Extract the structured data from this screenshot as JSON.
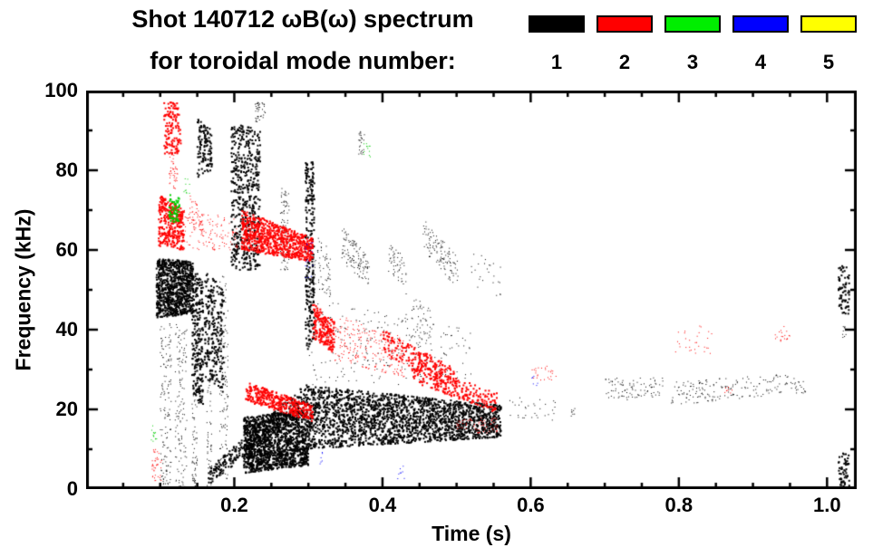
{
  "title": {
    "line1": "Shot 140712 ωB(ω) spectrum",
    "line2": "for toroidal mode number:"
  },
  "legend": {
    "items": [
      {
        "label": "1",
        "color": "#000000"
      },
      {
        "label": "2",
        "color": "#ff0000"
      },
      {
        "label": "3",
        "color": "#00ee00"
      },
      {
        "label": "4",
        "color": "#0000ff"
      },
      {
        "label": "5",
        "color": "#ffff00"
      }
    ]
  },
  "chart_data": {
    "type": "scatter",
    "title": "Shot 140712 ωB(ω) spectrum for toroidal mode number: 1 2 3 4 5",
    "xlabel": "Time (s)",
    "ylabel": "Frequency (kHz)",
    "xlim": [
      0,
      1.04
    ],
    "ylim": [
      0,
      100
    ],
    "grid": false,
    "legend_position": "top-right",
    "xticks": {
      "values": [
        0.2,
        0.4,
        0.6,
        0.8,
        1.0
      ],
      "labels": [
        "0.2",
        "0.4",
        "0.6",
        "0.8",
        "1.0"
      ],
      "minor": 0.05
    },
    "yticks": {
      "values": [
        0,
        20,
        40,
        60,
        80,
        100
      ],
      "labels": [
        "0",
        "20",
        "40",
        "60",
        "80",
        "100"
      ],
      "minor": 10
    },
    "cluster_format": "each cluster: t=[t0,t1] seconds; f0=[fLow,fHigh] kHz range at t0; f1=[fLow,fHigh] kHz range at t1; n=point count; s=dot size px",
    "series": [
      {
        "name": "n=1",
        "color": "#000000",
        "clusters": [
          {
            "t": [
              0.095,
              0.145
            ],
            "f0": [
              43,
              58
            ],
            "f1": [
              44,
              57
            ],
            "n": 850,
            "s": 2
          },
          {
            "t": [
              0.1,
              0.115
            ],
            "f0": [
              0,
              42
            ],
            "f1": [
              0,
              42
            ],
            "n": 150,
            "s": 1
          },
          {
            "t": [
              0.12,
              0.136
            ],
            "f0": [
              0,
              42
            ],
            "f1": [
              0,
              40
            ],
            "n": 130,
            "s": 1
          },
          {
            "t": [
              0.143,
              0.158
            ],
            "f0": [
              24,
              56
            ],
            "f1": [
              20,
              52
            ],
            "n": 240,
            "s": 2
          },
          {
            "t": [
              0.143,
              0.15
            ],
            "f0": [
              0,
              24
            ],
            "f1": [
              0,
              24
            ],
            "n": 60,
            "s": 1
          },
          {
            "t": [
              0.15,
              0.17
            ],
            "f0": [
              78,
              93
            ],
            "f1": [
              80,
              90
            ],
            "n": 120,
            "s": 2
          },
          {
            "t": [
              0.16,
              0.186
            ],
            "f0": [
              28,
              55
            ],
            "f1": [
              24,
              50
            ],
            "n": 260,
            "s": 2
          },
          {
            "t": [
              0.163,
              0.17
            ],
            "f0": [
              0,
              28
            ],
            "f1": [
              0,
              28
            ],
            "n": 50,
            "s": 1
          },
          {
            "t": [
              0.18,
              0.192
            ],
            "f0": [
              0,
              55
            ],
            "f1": [
              0,
              52
            ],
            "n": 110,
            "s": 1
          },
          {
            "t": [
              0.196,
              0.235
            ],
            "f0": [
              55,
              92
            ],
            "f1": [
              55,
              90
            ],
            "n": 520,
            "s": 2
          },
          {
            "t": [
              0.165,
              0.3
            ],
            "f0": [
              1,
              5
            ],
            "f1": [
              21,
              27
            ],
            "n": 320,
            "s": 2
          },
          {
            "t": [
              0.213,
              0.3
            ],
            "f0": [
              4,
              18
            ],
            "f1": [
              6,
              20
            ],
            "n": 1500,
            "s": 2
          },
          {
            "t": [
              0.228,
              0.242
            ],
            "f0": [
              92,
              97
            ],
            "f1": [
              92,
              97
            ],
            "n": 40,
            "s": 1
          },
          {
            "t": [
              0.262,
              0.274
            ],
            "f0": [
              55,
              76
            ],
            "f1": [
              55,
              74
            ],
            "n": 90,
            "s": 1
          },
          {
            "t": [
              0.296,
              0.308
            ],
            "f0": [
              34,
              82
            ],
            "f1": [
              38,
              82
            ],
            "n": 260,
            "s": 2
          },
          {
            "t": [
              0.3,
              0.56
            ],
            "f0": [
              10,
              26
            ],
            "f1": [
              13,
              21
            ],
            "n": 2100,
            "s": 2
          },
          {
            "t": [
              0.3,
              0.52
            ],
            "f0": [
              26,
              48
            ],
            "f1": [
              26,
              40
            ],
            "n": 240,
            "s": 1
          },
          {
            "t": [
              0.345,
              0.382
            ],
            "f0": [
              57,
              66
            ],
            "f1": [
              51,
              58
            ],
            "n": 120,
            "s": 1
          },
          {
            "t": [
              0.368,
              0.376
            ],
            "f0": [
              84,
              90
            ],
            "f1": [
              84,
              90
            ],
            "n": 25,
            "s": 1
          },
          {
            "t": [
              0.408,
              0.432
            ],
            "f0": [
              54,
              62
            ],
            "f1": [
              51,
              58
            ],
            "n": 55,
            "s": 1
          },
          {
            "t": [
              0.455,
              0.502
            ],
            "f0": [
              60,
              68
            ],
            "f1": [
              50,
              58
            ],
            "n": 120,
            "s": 1
          },
          {
            "t": [
              0.52,
              0.56
            ],
            "f0": [
              50,
              60
            ],
            "f1": [
              48,
              56
            ],
            "n": 25,
            "s": 1
          },
          {
            "t": [
              0.57,
              0.635
            ],
            "f0": [
              17,
              23
            ],
            "f1": [
              17,
              23
            ],
            "n": 32,
            "s": 1
          },
          {
            "t": [
              0.65,
              0.662
            ],
            "f0": [
              18,
              21
            ],
            "f1": [
              18,
              21
            ],
            "n": 8,
            "s": 1
          },
          {
            "t": [
              0.7,
              0.78
            ],
            "f0": [
              22,
              28
            ],
            "f1": [
              23,
              28
            ],
            "n": 95,
            "s": 1
          },
          {
            "t": [
              0.79,
              0.95
            ],
            "f0": [
              21,
              27
            ],
            "f1": [
              24,
              29
            ],
            "n": 170,
            "s": 1
          },
          {
            "t": [
              0.95,
              0.972
            ],
            "f0": [
              24,
              28
            ],
            "f1": [
              24,
              28
            ],
            "n": 22,
            "s": 1
          },
          {
            "t": [
              1.015,
              1.03
            ],
            "f0": [
              44,
              56
            ],
            "f1": [
              44,
              56
            ],
            "n": 70,
            "s": 2
          },
          {
            "t": [
              1.015,
              1.03
            ],
            "f0": [
              0,
              9
            ],
            "f1": [
              0,
              9
            ],
            "n": 55,
            "s": 2
          },
          {
            "t": [
              1.02,
              1.026
            ],
            "f0": [
              38,
              41
            ],
            "f1": [
              38,
              41
            ],
            "n": 10,
            "s": 1
          },
          {
            "t": [
              0.308,
              0.33
            ],
            "f0": [
              50,
              64
            ],
            "f1": [
              48,
              60
            ],
            "n": 60,
            "s": 1
          },
          {
            "t": [
              0.43,
              0.465
            ],
            "f0": [
              38,
              50
            ],
            "f1": [
              36,
              46
            ],
            "n": 50,
            "s": 1
          }
        ]
      },
      {
        "name": "n=2",
        "color": "#ff0000",
        "clusters": [
          {
            "t": [
              0.105,
              0.128
            ],
            "f0": [
              84,
              97
            ],
            "f1": [
              84,
              97
            ],
            "n": 130,
            "s": 2
          },
          {
            "t": [
              0.112,
              0.124
            ],
            "f0": [
              75,
              84
            ],
            "f1": [
              75,
              84
            ],
            "n": 40,
            "s": 1
          },
          {
            "t": [
              0.098,
              0.132
            ],
            "f0": [
              61,
              74
            ],
            "f1": [
              60,
              70
            ],
            "n": 320,
            "s": 2
          },
          {
            "t": [
              0.132,
              0.205
            ],
            "f0": [
              60,
              70
            ],
            "f1": [
              60,
              68
            ],
            "n": 130,
            "s": 1
          },
          {
            "t": [
              0.14,
              0.158
            ],
            "f0": [
              66,
              74
            ],
            "f1": [
              64,
              70
            ],
            "n": 45,
            "s": 1
          },
          {
            "t": [
              0.21,
              0.306
            ],
            "f0": [
              60,
              70
            ],
            "f1": [
              57,
              63
            ],
            "n": 750,
            "s": 2
          },
          {
            "t": [
              0.215,
              0.306
            ],
            "f0": [
              22,
              27
            ],
            "f1": [
              17,
              21
            ],
            "n": 380,
            "s": 2
          },
          {
            "t": [
              0.306,
              0.335
            ],
            "f0": [
              38,
              47
            ],
            "f1": [
              34,
              42
            ],
            "n": 200,
            "s": 2
          },
          {
            "t": [
              0.335,
              0.43
            ],
            "f0": [
              32,
              44
            ],
            "f1": [
              28,
              38
            ],
            "n": 230,
            "s": 1
          },
          {
            "t": [
              0.4,
              0.5
            ],
            "f0": [
              34,
              40
            ],
            "f1": [
              25,
              30
            ],
            "n": 200,
            "s": 2
          },
          {
            "t": [
              0.44,
              0.555
            ],
            "f0": [
              27,
              32
            ],
            "f1": [
              19,
              24
            ],
            "n": 230,
            "s": 2
          },
          {
            "t": [
              0.5,
              0.555
            ],
            "f0": [
              14,
              18
            ],
            "f1": [
              14,
              18
            ],
            "n": 60,
            "s": 1
          },
          {
            "t": [
              0.6,
              0.64
            ],
            "f0": [
              27,
              31
            ],
            "f1": [
              27,
              31
            ],
            "n": 26,
            "s": 1
          },
          {
            "t": [
              0.795,
              0.845
            ],
            "f0": [
              34,
              41
            ],
            "f1": [
              34,
              41
            ],
            "n": 30,
            "s": 1
          },
          {
            "t": [
              0.93,
              0.95
            ],
            "f0": [
              37,
              41
            ],
            "f1": [
              37,
              41
            ],
            "n": 20,
            "s": 1
          },
          {
            "t": [
              0.86,
              0.872
            ],
            "f0": [
              24,
              26
            ],
            "f1": [
              24,
              26
            ],
            "n": 8,
            "s": 1
          },
          {
            "t": [
              0.088,
              0.102
            ],
            "f0": [
              2,
              10
            ],
            "f1": [
              2,
              10
            ],
            "n": 40,
            "s": 1
          }
        ]
      },
      {
        "name": "n=3",
        "color": "#00cc00",
        "clusters": [
          {
            "t": [
              0.112,
              0.126
            ],
            "f0": [
              67,
              74
            ],
            "f1": [
              67,
              73
            ],
            "n": 60,
            "s": 2
          },
          {
            "t": [
              0.088,
              0.096
            ],
            "f0": [
              12,
              16
            ],
            "f1": [
              12,
              16
            ],
            "n": 14,
            "s": 1
          },
          {
            "t": [
              0.374,
              0.384
            ],
            "f0": [
              83,
              87
            ],
            "f1": [
              83,
              87
            ],
            "n": 12,
            "s": 1
          },
          {
            "t": [
              0.13,
              0.14
            ],
            "f0": [
              74,
              78
            ],
            "f1": [
              74,
              78
            ],
            "n": 10,
            "s": 1
          }
        ]
      },
      {
        "name": "n=4",
        "color": "#0000ff",
        "clusters": [
          {
            "t": [
              0.296,
              0.306
            ],
            "f0": [
              52,
              62
            ],
            "f1": [
              52,
              62
            ],
            "n": 18,
            "s": 1
          },
          {
            "t": [
              0.42,
              0.43
            ],
            "f0": [
              2,
              6
            ],
            "f1": [
              2,
              6
            ],
            "n": 8,
            "s": 1
          },
          {
            "t": [
              0.6,
              0.61
            ],
            "f0": [
              26,
              29
            ],
            "f1": [
              26,
              29
            ],
            "n": 6,
            "s": 1
          },
          {
            "t": [
              0.315,
              0.322
            ],
            "f0": [
              6,
              10
            ],
            "f1": [
              6,
              10
            ],
            "n": 6,
            "s": 1
          }
        ]
      },
      {
        "name": "n=5",
        "color": "#ffff00",
        "clusters": []
      }
    ]
  }
}
